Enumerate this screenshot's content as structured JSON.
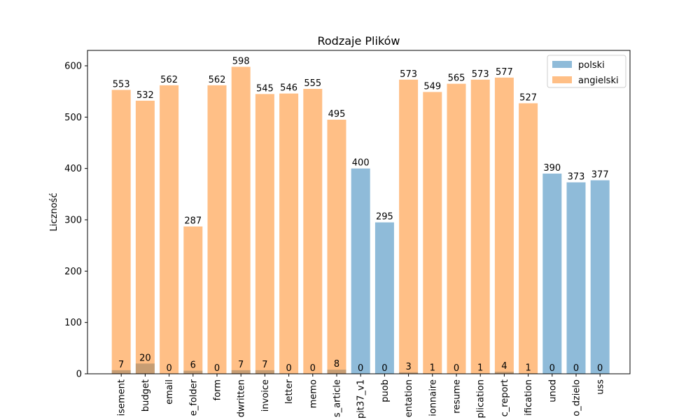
{
  "chart_data": {
    "type": "bar",
    "title": "Rodzaje Plików",
    "xlabel": "",
    "ylabel": "Liczność",
    "ylim": [
      0,
      630
    ],
    "yticks": [
      0,
      100,
      200,
      300,
      400,
      500,
      600
    ],
    "grid": false,
    "legend_position": "top-right",
    "categories": [
      "isement",
      "budget",
      "email",
      "e_folder",
      "form",
      "dwritten",
      "invoice",
      "letter",
      "memo",
      "s_article",
      "pit37_v1",
      "puob",
      "entation",
      "ionnaire",
      "resume",
      "plication",
      "c_report",
      "ification",
      "unod",
      "o_dzielo",
      "uss"
    ],
    "series": [
      {
        "name": "polski",
        "color": "#1f77b4",
        "opacity": 0.5,
        "values": [
          7,
          20,
          0,
          6,
          0,
          7,
          7,
          0,
          0,
          8,
          400,
          295,
          3,
          1,
          0,
          1,
          4,
          1,
          390,
          373,
          377
        ]
      },
      {
        "name": "angielski",
        "color": "#ff7f0e",
        "opacity": 0.5,
        "values": [
          553,
          532,
          562,
          287,
          562,
          598,
          545,
          546,
          555,
          495,
          0,
          0,
          573,
          549,
          565,
          573,
          577,
          527,
          0,
          0,
          0
        ]
      }
    ]
  }
}
